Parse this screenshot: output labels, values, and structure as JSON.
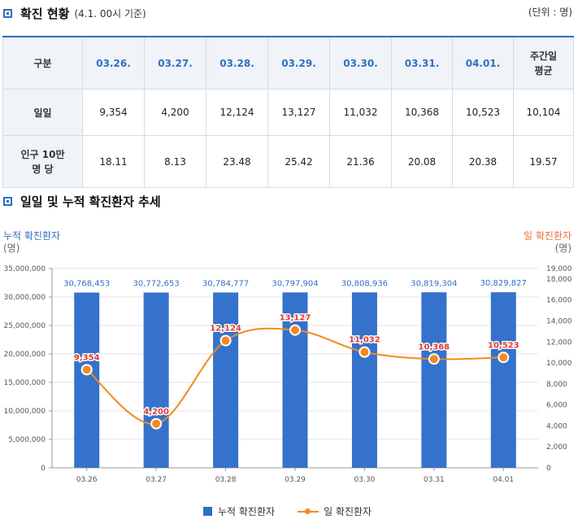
{
  "section1": {
    "title": "확진 현황",
    "subtitle": "(4.1. 00시 기준)",
    "unit": "(단위 : 명)"
  },
  "table": {
    "headers": [
      "구분",
      "03.26.",
      "03.27.",
      "03.28.",
      "03.29.",
      "03.30.",
      "03.31.",
      "04.01.",
      "주간일\n평균"
    ],
    "rows": [
      {
        "label": "일일",
        "values": [
          "9,354",
          "4,200",
          "12,124",
          "13,127",
          "11,032",
          "10,368",
          "10,523",
          "10,104"
        ]
      },
      {
        "label": "인구 10만\n명 당",
        "values": [
          "18.11",
          "8.13",
          "23.48",
          "25.42",
          "21.36",
          "20.08",
          "20.38",
          "19.57"
        ]
      }
    ]
  },
  "section2": {
    "title": "일일 및 누적 확진환자 추세"
  },
  "chart_data": {
    "type": "bar+line",
    "categories": [
      "03.26",
      "03.27",
      "03.28",
      "03.29",
      "03.30",
      "03.31",
      "04.01"
    ],
    "left_axis": {
      "label": "누적 확진환자",
      "unit": "(명)",
      "min": 0,
      "max": 35000000,
      "ticks": [
        0,
        5000000,
        10000000,
        15000000,
        20000000,
        25000000,
        30000000,
        35000000
      ],
      "tick_labels": [
        "0",
        "5,000,000",
        "10,000,000",
        "15,000,000",
        "20,000,000",
        "25,000,000",
        "30,000,000",
        "35,000,000"
      ]
    },
    "right_axis": {
      "label": "일 확진환자",
      "unit": "(명)",
      "min": 0,
      "max": 19000,
      "ticks": [
        0,
        2000,
        4000,
        6000,
        8000,
        10000,
        12000,
        14000,
        16000,
        18000,
        19000
      ],
      "tick_labels": [
        "0",
        "2,000",
        "4,000",
        "6,000",
        "8,000",
        "10,000",
        "12,000",
        "14,000",
        "16,000",
        "18,000",
        "19,000"
      ]
    },
    "series": [
      {
        "name": "누적 확진환자",
        "type": "bar",
        "axis": "left",
        "color": "#3572cb",
        "values": [
          30768453,
          30772653,
          30784777,
          30797904,
          30808936,
          30819304,
          30829827
        ],
        "labels": [
          "30,768,453",
          "30,772,653",
          "30,784,777",
          "30,797,904",
          "30,808,936",
          "30,819,304",
          "30,829,827"
        ]
      },
      {
        "name": "일 확진환자",
        "type": "line",
        "axis": "right",
        "color": "#f28a1f",
        "values": [
          9354,
          4200,
          12124,
          13127,
          11032,
          10368,
          10523
        ],
        "labels": [
          "9,354",
          "4,200",
          "12,124",
          "13,127",
          "11,032",
          "10,368",
          "10,523"
        ]
      }
    ],
    "bar_label_color": "#2f6fc1",
    "line_label_color": "#e03b2b",
    "grid": true,
    "legend_position": "bottom"
  }
}
